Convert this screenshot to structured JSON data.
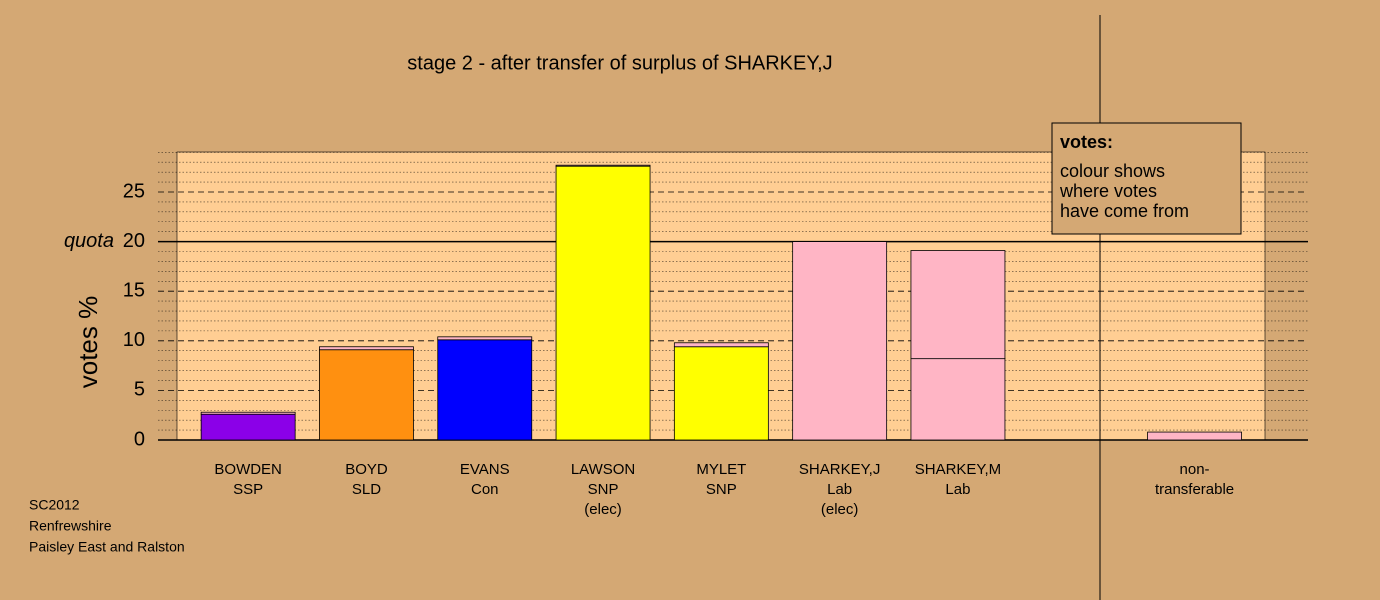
{
  "chart_data": {
    "type": "stacked_bar",
    "title": "stage 2 - after transfer of surplus of SHARKEY,J",
    "y_label": "votes %",
    "categories": [
      [
        "BOWDEN",
        "SSP"
      ],
      [
        "BOYD",
        "SLD"
      ],
      [
        "EVANS",
        "Con"
      ],
      [
        "LAWSON",
        "SNP",
        "(elec)"
      ],
      [
        "MYLET",
        "SNP"
      ],
      [
        "SHARKEY,J",
        "Lab",
        "(elec)"
      ],
      [
        "SHARKEY,M",
        "Lab"
      ],
      null,
      [
        "non-",
        "transferable"
      ]
    ],
    "series": [
      {
        "values": [
          2.6,
          9.1,
          10.1,
          27.6,
          9.4,
          20.0,
          8.2,
          null,
          0.8
        ],
        "colors": [
          "#8b00e8",
          "#ff9010",
          "#0000ff",
          "#ffff00",
          "#ffff00",
          "#ffb5c5",
          "#ffb5c5",
          null,
          "#ffb5c5"
        ]
      },
      {
        "values": [
          0.2,
          0.3,
          0.3,
          0.1,
          0.4,
          null,
          10.9,
          null,
          null
        ],
        "color": "#ffb5c5"
      }
    ],
    "ylim": [
      0,
      29
    ],
    "yticks": [
      0,
      5,
      10,
      15,
      20,
      25
    ],
    "minor_yticks": [
      1,
      2,
      3,
      4,
      6,
      7,
      8,
      9,
      11,
      12,
      13,
      14,
      16,
      17,
      18,
      19,
      21,
      22,
      23,
      24,
      26,
      27,
      28,
      29
    ],
    "quota": {
      "value": 20,
      "label": "quota"
    },
    "legend": {
      "title": "votes:",
      "lines": [
        "colour shows",
        "where votes",
        "have come from"
      ]
    },
    "footnote": [
      "SC2012",
      "Renfrewshire",
      "Paisley East and Ralston"
    ]
  }
}
